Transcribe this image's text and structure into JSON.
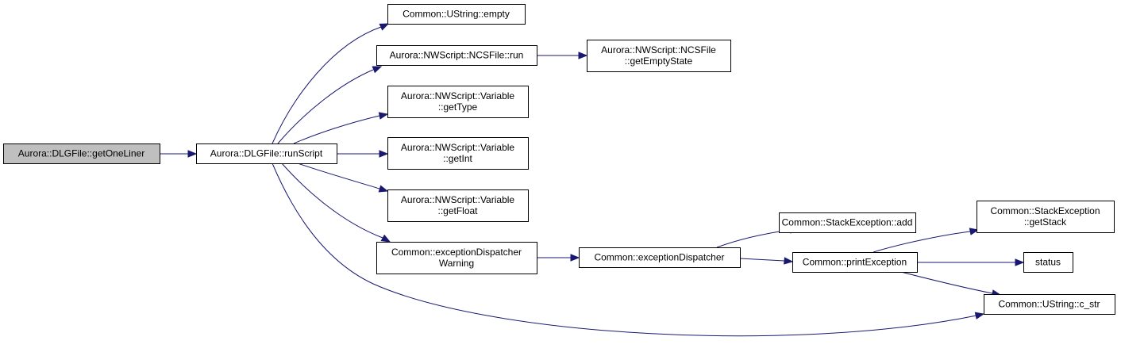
{
  "nodes": {
    "getOneLiner": {
      "lines": [
        "Aurora::DLGFile::getOneLiner"
      ],
      "root": true
    },
    "runScript": {
      "lines": [
        "Aurora::DLGFile::runScript"
      ]
    },
    "ustring_empty": {
      "lines": [
        "Common::UString::empty"
      ]
    },
    "ncsfile_run": {
      "lines": [
        "Aurora::NWScript::NCSFile::run"
      ]
    },
    "getEmptyState": {
      "lines": [
        "Aurora::NWScript::NCSFile",
        "::getEmptyState"
      ]
    },
    "getType": {
      "lines": [
        "Aurora::NWScript::Variable",
        "::getType"
      ]
    },
    "getInt": {
      "lines": [
        "Aurora::NWScript::Variable",
        "::getInt"
      ]
    },
    "getFloat": {
      "lines": [
        "Aurora::NWScript::Variable",
        "::getFloat"
      ]
    },
    "exDispWarning": {
      "lines": [
        "Common::exceptionDispatcher",
        "Warning"
      ]
    },
    "exDisp": {
      "lines": [
        "Common::exceptionDispatcher"
      ]
    },
    "stackAdd": {
      "lines": [
        "Common::StackException::add"
      ]
    },
    "printException": {
      "lines": [
        "Common::printException"
      ]
    },
    "getStack": {
      "lines": [
        "Common::StackException",
        "::getStack"
      ]
    },
    "status": {
      "lines": [
        "status"
      ]
    },
    "c_str": {
      "lines": [
        "Common::UString::c_str"
      ]
    }
  },
  "edges": [
    {
      "from": "getOneLiner",
      "to": "runScript"
    },
    {
      "from": "runScript",
      "to": "ustring_empty"
    },
    {
      "from": "runScript",
      "to": "ncsfile_run"
    },
    {
      "from": "runScript",
      "to": "getType"
    },
    {
      "from": "runScript",
      "to": "getInt"
    },
    {
      "from": "runScript",
      "to": "getFloat"
    },
    {
      "from": "runScript",
      "to": "exDispWarning"
    },
    {
      "from": "runScript",
      "to": "c_str"
    },
    {
      "from": "ncsfile_run",
      "to": "getEmptyState"
    },
    {
      "from": "exDispWarning",
      "to": "exDisp"
    },
    {
      "from": "exDisp",
      "to": "stackAdd"
    },
    {
      "from": "exDisp",
      "to": "printException"
    },
    {
      "from": "printException",
      "to": "getStack"
    },
    {
      "from": "printException",
      "to": "status"
    },
    {
      "from": "printException",
      "to": "c_str"
    }
  ],
  "colors": {
    "edge": "#191970",
    "root_fill": "#bfbfbf",
    "node_fill": "#ffffff",
    "border": "#000000"
  }
}
